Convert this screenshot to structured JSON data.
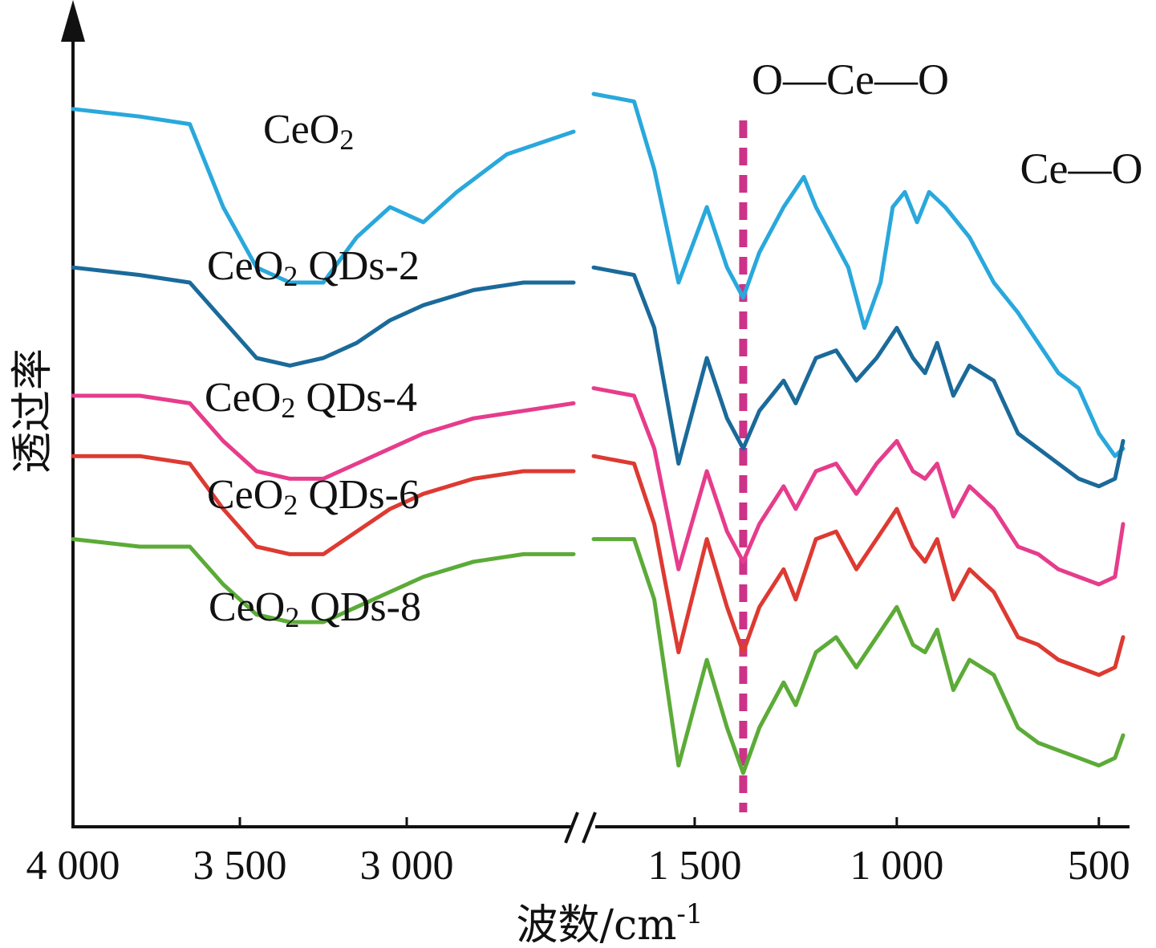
{
  "chart_data": {
    "type": "line",
    "xlabel": "波数/cm",
    "xlabel_sup": "-1",
    "ylabel": "透过率",
    "x_reversed": true,
    "axis_break": [
      2500,
      1750
    ],
    "segments": [
      {
        "xlim": [
          4000,
          2500
        ]
      },
      {
        "xlim": [
          1750,
          440
        ]
      }
    ],
    "x_ticks": [
      4000,
      3500,
      3000,
      1500,
      1000,
      500
    ],
    "x_tick_labels": [
      "4 000",
      "3 500",
      "3 000",
      "1 500",
      "1 000",
      "500"
    ],
    "y_ticks_shown": false,
    "grid": false,
    "legend": "none",
    "annotations": [
      {
        "text": "O—Ce—O",
        "x": 1380
      },
      {
        "text": "Ce—O",
        "x": 470
      }
    ],
    "marker_line": {
      "x": 1380,
      "style": "dashed",
      "color": "#cc3388"
    },
    "series": [
      {
        "name": "CeO2",
        "label_main": "CeO",
        "label_sub": "2",
        "label_rest": "",
        "color": "#29a8dc",
        "high": [
          [
            4000,
            0.93
          ],
          [
            3800,
            0.92
          ],
          [
            3650,
            0.91
          ],
          [
            3550,
            0.8
          ],
          [
            3450,
            0.72
          ],
          [
            3350,
            0.7
          ],
          [
            3250,
            0.7
          ],
          [
            3150,
            0.76
          ],
          [
            3050,
            0.8
          ],
          [
            2950,
            0.78
          ],
          [
            2850,
            0.82
          ],
          [
            2700,
            0.87
          ],
          [
            2500,
            0.9
          ]
        ],
        "low": [
          [
            1750,
            0.95
          ],
          [
            1650,
            0.94
          ],
          [
            1600,
            0.85
          ],
          [
            1540,
            0.7
          ],
          [
            1470,
            0.8
          ],
          [
            1420,
            0.72
          ],
          [
            1380,
            0.68
          ],
          [
            1340,
            0.74
          ],
          [
            1280,
            0.8
          ],
          [
            1230,
            0.84
          ],
          [
            1200,
            0.8
          ],
          [
            1160,
            0.76
          ],
          [
            1120,
            0.72
          ],
          [
            1080,
            0.64
          ],
          [
            1040,
            0.7
          ],
          [
            1010,
            0.8
          ],
          [
            980,
            0.82
          ],
          [
            950,
            0.78
          ],
          [
            920,
            0.82
          ],
          [
            880,
            0.8
          ],
          [
            820,
            0.76
          ],
          [
            760,
            0.7
          ],
          [
            700,
            0.66
          ],
          [
            650,
            0.62
          ],
          [
            600,
            0.58
          ],
          [
            550,
            0.56
          ],
          [
            500,
            0.5
          ],
          [
            460,
            0.47
          ],
          [
            440,
            0.48
          ]
        ]
      },
      {
        "name": "CeO2 QDs-2",
        "label_main": "CeO",
        "label_sub": "2",
        "label_rest": " QDs-2",
        "color": "#1a6a9a",
        "high": [
          [
            4000,
            0.72
          ],
          [
            3800,
            0.71
          ],
          [
            3650,
            0.7
          ],
          [
            3550,
            0.65
          ],
          [
            3450,
            0.6
          ],
          [
            3350,
            0.59
          ],
          [
            3250,
            0.6
          ],
          [
            3150,
            0.62
          ],
          [
            3050,
            0.65
          ],
          [
            2950,
            0.67
          ],
          [
            2800,
            0.69
          ],
          [
            2650,
            0.7
          ],
          [
            2500,
            0.7
          ]
        ],
        "low": [
          [
            1750,
            0.72
          ],
          [
            1650,
            0.71
          ],
          [
            1600,
            0.64
          ],
          [
            1540,
            0.46
          ],
          [
            1470,
            0.6
          ],
          [
            1420,
            0.52
          ],
          [
            1380,
            0.48
          ],
          [
            1340,
            0.53
          ],
          [
            1280,
            0.57
          ],
          [
            1250,
            0.54
          ],
          [
            1200,
            0.6
          ],
          [
            1150,
            0.61
          ],
          [
            1100,
            0.57
          ],
          [
            1050,
            0.6
          ],
          [
            1000,
            0.64
          ],
          [
            960,
            0.6
          ],
          [
            930,
            0.58
          ],
          [
            900,
            0.62
          ],
          [
            860,
            0.55
          ],
          [
            820,
            0.59
          ],
          [
            760,
            0.57
          ],
          [
            700,
            0.5
          ],
          [
            650,
            0.48
          ],
          [
            600,
            0.46
          ],
          [
            550,
            0.44
          ],
          [
            500,
            0.43
          ],
          [
            460,
            0.44
          ],
          [
            440,
            0.49
          ]
        ]
      },
      {
        "name": "CeO2 QDs-4",
        "label_main": "CeO",
        "label_sub": "2",
        "label_rest": " QDs-4",
        "color": "#e63c8c",
        "high": [
          [
            4000,
            0.55
          ],
          [
            3800,
            0.55
          ],
          [
            3650,
            0.54
          ],
          [
            3550,
            0.49
          ],
          [
            3450,
            0.45
          ],
          [
            3350,
            0.44
          ],
          [
            3250,
            0.44
          ],
          [
            3150,
            0.46
          ],
          [
            3050,
            0.48
          ],
          [
            2950,
            0.5
          ],
          [
            2800,
            0.52
          ],
          [
            2650,
            0.53
          ],
          [
            2500,
            0.54
          ]
        ],
        "low": [
          [
            1750,
            0.56
          ],
          [
            1650,
            0.55
          ],
          [
            1600,
            0.48
          ],
          [
            1540,
            0.32
          ],
          [
            1470,
            0.45
          ],
          [
            1420,
            0.37
          ],
          [
            1380,
            0.33
          ],
          [
            1340,
            0.38
          ],
          [
            1280,
            0.43
          ],
          [
            1250,
            0.4
          ],
          [
            1200,
            0.45
          ],
          [
            1150,
            0.46
          ],
          [
            1100,
            0.42
          ],
          [
            1050,
            0.46
          ],
          [
            1000,
            0.49
          ],
          [
            960,
            0.45
          ],
          [
            930,
            0.44
          ],
          [
            900,
            0.46
          ],
          [
            860,
            0.39
          ],
          [
            820,
            0.43
          ],
          [
            760,
            0.4
          ],
          [
            700,
            0.35
          ],
          [
            650,
            0.34
          ],
          [
            600,
            0.32
          ],
          [
            550,
            0.31
          ],
          [
            500,
            0.3
          ],
          [
            460,
            0.31
          ],
          [
            440,
            0.38
          ]
        ]
      },
      {
        "name": "CeO2 QDs-6",
        "label_main": "CeO",
        "label_sub": "2",
        "label_rest": " QDs-6",
        "color": "#dd3a32",
        "high": [
          [
            4000,
            0.47
          ],
          [
            3800,
            0.47
          ],
          [
            3650,
            0.46
          ],
          [
            3550,
            0.4
          ],
          [
            3450,
            0.35
          ],
          [
            3350,
            0.34
          ],
          [
            3250,
            0.34
          ],
          [
            3150,
            0.37
          ],
          [
            3050,
            0.4
          ],
          [
            2950,
            0.42
          ],
          [
            2800,
            0.44
          ],
          [
            2650,
            0.45
          ],
          [
            2500,
            0.45
          ]
        ],
        "low": [
          [
            1750,
            0.47
          ],
          [
            1650,
            0.46
          ],
          [
            1600,
            0.38
          ],
          [
            1540,
            0.21
          ],
          [
            1470,
            0.36
          ],
          [
            1420,
            0.27
          ],
          [
            1380,
            0.21
          ],
          [
            1340,
            0.27
          ],
          [
            1280,
            0.32
          ],
          [
            1250,
            0.28
          ],
          [
            1200,
            0.36
          ],
          [
            1150,
            0.37
          ],
          [
            1100,
            0.32
          ],
          [
            1050,
            0.36
          ],
          [
            1000,
            0.4
          ],
          [
            960,
            0.35
          ],
          [
            930,
            0.33
          ],
          [
            900,
            0.36
          ],
          [
            860,
            0.28
          ],
          [
            820,
            0.32
          ],
          [
            760,
            0.29
          ],
          [
            700,
            0.23
          ],
          [
            650,
            0.22
          ],
          [
            600,
            0.2
          ],
          [
            550,
            0.19
          ],
          [
            500,
            0.18
          ],
          [
            460,
            0.19
          ],
          [
            440,
            0.23
          ]
        ]
      },
      {
        "name": "CeO2 QDs-8",
        "label_main": "CeO",
        "label_sub": "2",
        "label_rest": " QDs-8",
        "color": "#5cab38",
        "high": [
          [
            4000,
            0.36
          ],
          [
            3800,
            0.35
          ],
          [
            3650,
            0.35
          ],
          [
            3550,
            0.3
          ],
          [
            3450,
            0.26
          ],
          [
            3350,
            0.25
          ],
          [
            3250,
            0.25
          ],
          [
            3150,
            0.27
          ],
          [
            3050,
            0.29
          ],
          [
            2950,
            0.31
          ],
          [
            2800,
            0.33
          ],
          [
            2650,
            0.34
          ],
          [
            2500,
            0.34
          ]
        ],
        "low": [
          [
            1750,
            0.36
          ],
          [
            1650,
            0.36
          ],
          [
            1600,
            0.28
          ],
          [
            1540,
            0.06
          ],
          [
            1470,
            0.2
          ],
          [
            1420,
            0.11
          ],
          [
            1380,
            0.05
          ],
          [
            1340,
            0.11
          ],
          [
            1280,
            0.17
          ],
          [
            1250,
            0.14
          ],
          [
            1200,
            0.21
          ],
          [
            1150,
            0.23
          ],
          [
            1100,
            0.19
          ],
          [
            1050,
            0.23
          ],
          [
            1000,
            0.27
          ],
          [
            960,
            0.22
          ],
          [
            930,
            0.21
          ],
          [
            900,
            0.24
          ],
          [
            860,
            0.16
          ],
          [
            820,
            0.2
          ],
          [
            760,
            0.18
          ],
          [
            700,
            0.11
          ],
          [
            650,
            0.09
          ],
          [
            600,
            0.08
          ],
          [
            550,
            0.07
          ],
          [
            500,
            0.06
          ],
          [
            460,
            0.07
          ],
          [
            440,
            0.1
          ]
        ]
      }
    ]
  }
}
